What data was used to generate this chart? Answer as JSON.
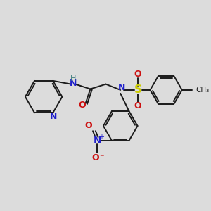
{
  "background_color": "#dcdcdc",
  "bond_color": "#1a1a1a",
  "lw": 1.4,
  "colors": {
    "N": "#2020cc",
    "NH_H": "#3a7a7a",
    "O": "#cc1010",
    "S": "#cccc00",
    "C": "#1a1a1a"
  },
  "layout": {
    "xlim": [
      0,
      10
    ],
    "ylim": [
      0,
      10
    ]
  }
}
